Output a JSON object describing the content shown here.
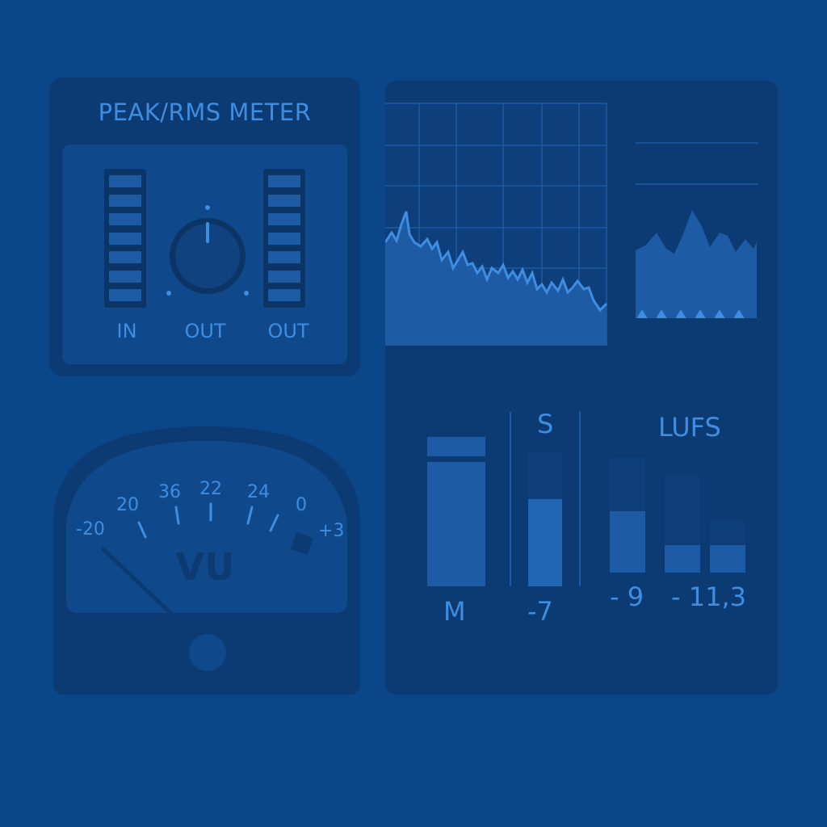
{
  "peak_meter": {
    "title": "PEAK/RMS METER",
    "labels": {
      "in": "IN",
      "out_knob": "OUT",
      "out_meter": "OUT"
    }
  },
  "vu_meter": {
    "label": "VU",
    "scale": [
      "-20",
      "20",
      "36",
      "22",
      "24",
      "0",
      "+3"
    ]
  },
  "loudness": {
    "m_label": "M",
    "s_label": "S",
    "lufs_label": "LUFS",
    "s_value": "-7",
    "value_1": "- 9",
    "value_2": "- 11,3"
  },
  "colors": {
    "background": "#0b4688",
    "panel": "#0c3a72",
    "accent": "#3f8de0",
    "fill": "#1d5ba4"
  }
}
